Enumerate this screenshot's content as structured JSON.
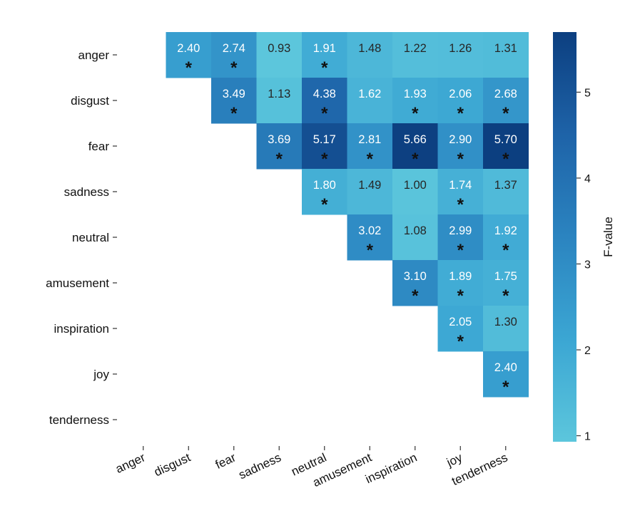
{
  "chart_data": {
    "type": "heatmap",
    "rows": [
      "anger",
      "disgust",
      "fear",
      "sadness",
      "neutral",
      "amusement",
      "inspiration",
      "joy",
      "tenderness"
    ],
    "columns": [
      "anger",
      "disgust",
      "fear",
      "sadness",
      "neutral",
      "amusement",
      "inspiration",
      "joy",
      "tenderness"
    ],
    "cells": [
      {
        "row": "anger",
        "col": "disgust",
        "value": "2.40",
        "significant": true
      },
      {
        "row": "anger",
        "col": "fear",
        "value": "2.74",
        "significant": true
      },
      {
        "row": "anger",
        "col": "sadness",
        "value": "0.93",
        "significant": false
      },
      {
        "row": "anger",
        "col": "neutral",
        "value": "1.91",
        "significant": true
      },
      {
        "row": "anger",
        "col": "amusement",
        "value": "1.48",
        "significant": false
      },
      {
        "row": "anger",
        "col": "inspiration",
        "value": "1.22",
        "significant": false
      },
      {
        "row": "anger",
        "col": "joy",
        "value": "1.26",
        "significant": false
      },
      {
        "row": "anger",
        "col": "tenderness",
        "value": "1.31",
        "significant": false
      },
      {
        "row": "disgust",
        "col": "fear",
        "value": "3.49",
        "significant": true
      },
      {
        "row": "disgust",
        "col": "sadness",
        "value": "1.13",
        "significant": false
      },
      {
        "row": "disgust",
        "col": "neutral",
        "value": "4.38",
        "significant": true
      },
      {
        "row": "disgust",
        "col": "amusement",
        "value": "1.62",
        "significant": false
      },
      {
        "row": "disgust",
        "col": "inspiration",
        "value": "1.93",
        "significant": true
      },
      {
        "row": "disgust",
        "col": "joy",
        "value": "2.06",
        "significant": true
      },
      {
        "row": "disgust",
        "col": "tenderness",
        "value": "2.68",
        "significant": true
      },
      {
        "row": "fear",
        "col": "sadness",
        "value": "3.69",
        "significant": true
      },
      {
        "row": "fear",
        "col": "neutral",
        "value": "5.17",
        "significant": true
      },
      {
        "row": "fear",
        "col": "amusement",
        "value": "2.81",
        "significant": true
      },
      {
        "row": "fear",
        "col": "inspiration",
        "value": "5.66",
        "significant": true
      },
      {
        "row": "fear",
        "col": "joy",
        "value": "2.90",
        "significant": true
      },
      {
        "row": "fear",
        "col": "tenderness",
        "value": "5.70",
        "significant": true
      },
      {
        "row": "sadness",
        "col": "neutral",
        "value": "1.80",
        "significant": true
      },
      {
        "row": "sadness",
        "col": "amusement",
        "value": "1.49",
        "significant": false
      },
      {
        "row": "sadness",
        "col": "inspiration",
        "value": "1.00",
        "significant": false
      },
      {
        "row": "sadness",
        "col": "joy",
        "value": "1.74",
        "significant": true
      },
      {
        "row": "sadness",
        "col": "tenderness",
        "value": "1.37",
        "significant": false
      },
      {
        "row": "neutral",
        "col": "amusement",
        "value": "3.02",
        "significant": true
      },
      {
        "row": "neutral",
        "col": "inspiration",
        "value": "1.08",
        "significant": false
      },
      {
        "row": "neutral",
        "col": "joy",
        "value": "2.99",
        "significant": true
      },
      {
        "row": "neutral",
        "col": "tenderness",
        "value": "1.92",
        "significant": true
      },
      {
        "row": "amusement",
        "col": "inspiration",
        "value": "3.10",
        "significant": true
      },
      {
        "row": "amusement",
        "col": "joy",
        "value": "1.89",
        "significant": true
      },
      {
        "row": "amusement",
        "col": "tenderness",
        "value": "1.75",
        "significant": true
      },
      {
        "row": "inspiration",
        "col": "joy",
        "value": "2.05",
        "significant": true
      },
      {
        "row": "inspiration",
        "col": "tenderness",
        "value": "1.30",
        "significant": false
      },
      {
        "row": "joy",
        "col": "tenderness",
        "value": "2.40",
        "significant": true
      }
    ],
    "significance_marker": "*",
    "colorbar": {
      "label": "F-value",
      "ticks": [
        "1",
        "2",
        "3",
        "4",
        "5"
      ],
      "range": [
        0.93,
        5.7
      ],
      "colormap": [
        "#5cc6dc",
        "#3ba6d3",
        "#2b84c0",
        "#1e63a8",
        "#0c3f80"
      ]
    }
  }
}
